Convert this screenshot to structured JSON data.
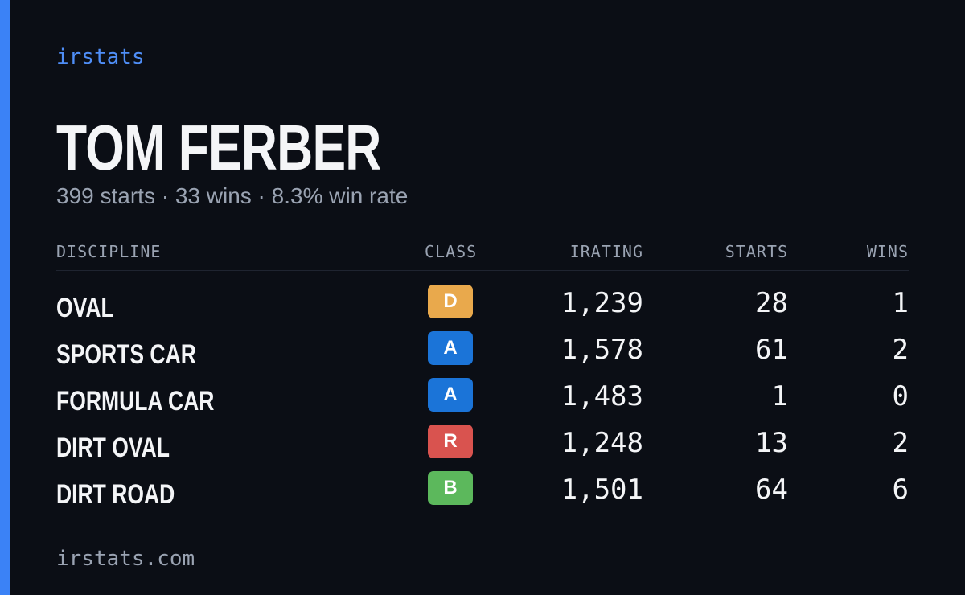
{
  "brand": "irstats",
  "name": "TOM FERBER",
  "subtitle": "399 starts · 33 wins · 8.3% win rate",
  "table": {
    "headers": [
      "DISCIPLINE",
      "CLASS",
      "IRATING",
      "STARTS",
      "WINS"
    ],
    "rows": [
      {
        "discipline": "OVAL",
        "class": "D",
        "class_color": "#e9a94c",
        "irating": "1,239",
        "starts": 28,
        "wins": 1
      },
      {
        "discipline": "SPORTS CAR",
        "class": "A",
        "class_color": "#1b74d8",
        "irating": "1,578",
        "starts": 61,
        "wins": 2
      },
      {
        "discipline": "FORMULA CAR",
        "class": "A",
        "class_color": "#1b74d8",
        "irating": "1,483",
        "starts": 1,
        "wins": 0
      },
      {
        "discipline": "DIRT OVAL",
        "class": "R",
        "class_color": "#d9534f",
        "irating": "1,248",
        "starts": 13,
        "wins": 2
      },
      {
        "discipline": "DIRT ROAD",
        "class": "B",
        "class_color": "#5cb85c",
        "irating": "1,501",
        "starts": 64,
        "wins": 6
      }
    ]
  },
  "footer": "irstats.com"
}
